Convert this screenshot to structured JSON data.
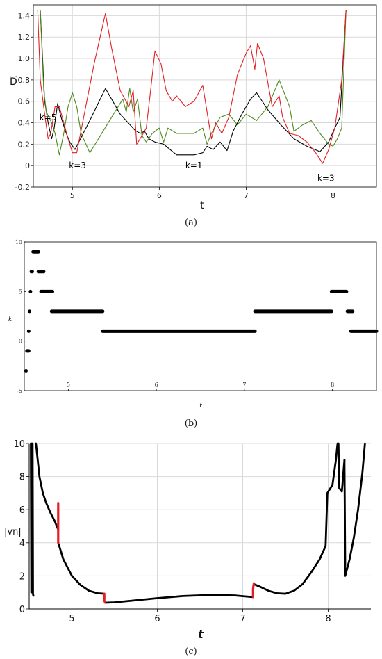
{
  "chart_data": [
    {
      "type": "line",
      "caption": "(a)",
      "xlabel": "t",
      "ylabel": "D̄",
      "xlim": [
        4.55,
        8.5
      ],
      "ylim": [
        -0.2,
        1.5
      ],
      "x_ticks": [
        5,
        6,
        7,
        8
      ],
      "y_ticks": [
        -0.2,
        0,
        0.2,
        0.4,
        0.6,
        0.8,
        1.0,
        1.2,
        1.4
      ],
      "y_tick_labels": [
        "-0.2",
        "0",
        "0.2",
        "0.4",
        "0.6",
        "0.8",
        "1.0",
        "1.2",
        "1.4"
      ],
      "grid": true,
      "series": [
        {
          "color": "#000000",
          "x": [
            4.63,
            4.68,
            4.72,
            4.76,
            4.79,
            4.83,
            4.87,
            4.92,
            4.97,
            5.03,
            5.2,
            5.38,
            5.55,
            5.72,
            5.78,
            5.83,
            5.88,
            5.95,
            6.05,
            6.2,
            6.3,
            6.4,
            6.5,
            6.55,
            6.62,
            6.7,
            6.78,
            6.85,
            6.95,
            7.05,
            7.12,
            7.25,
            7.4,
            7.55,
            7.7,
            7.85,
            7.95,
            8.02,
            8.08,
            8.15
          ],
          "y": [
            1.45,
            0.6,
            0.4,
            0.25,
            0.35,
            0.58,
            0.45,
            0.32,
            0.22,
            0.15,
            0.42,
            0.72,
            0.48,
            0.33,
            0.3,
            0.32,
            0.25,
            0.22,
            0.2,
            0.1,
            0.1,
            0.1,
            0.12,
            0.18,
            0.15,
            0.22,
            0.14,
            0.32,
            0.48,
            0.62,
            0.68,
            0.52,
            0.38,
            0.25,
            0.18,
            0.13,
            0.22,
            0.35,
            0.45,
            1.45
          ]
        },
        {
          "color": "#4d8a1e",
          "x": [
            4.63,
            4.67,
            4.7,
            4.73,
            4.76,
            4.8,
            4.85,
            4.9,
            4.95,
            5.0,
            5.05,
            5.1,
            5.2,
            5.3,
            5.45,
            5.58,
            5.62,
            5.66,
            5.7,
            5.75,
            5.8,
            5.85,
            5.92,
            6.0,
            6.05,
            6.1,
            6.2,
            6.3,
            6.4,
            6.5,
            6.55,
            6.6,
            6.7,
            6.8,
            6.9,
            7.0,
            7.12,
            7.25,
            7.38,
            7.5,
            7.55,
            7.65,
            7.75,
            7.85,
            7.9,
            7.95,
            8.0,
            8.05,
            8.1,
            8.15
          ],
          "y": [
            1.45,
            0.7,
            0.5,
            0.45,
            0.4,
            0.3,
            0.1,
            0.3,
            0.55,
            0.68,
            0.55,
            0.3,
            0.12,
            0.25,
            0.45,
            0.62,
            0.5,
            0.72,
            0.5,
            0.62,
            0.28,
            0.22,
            0.3,
            0.35,
            0.22,
            0.35,
            0.3,
            0.3,
            0.3,
            0.35,
            0.2,
            0.3,
            0.45,
            0.48,
            0.38,
            0.48,
            0.42,
            0.55,
            0.8,
            0.55,
            0.32,
            0.38,
            0.42,
            0.3,
            0.25,
            0.2,
            0.18,
            0.25,
            0.35,
            1.45
          ]
        },
        {
          "color": "#e31e24",
          "x": [
            4.6,
            4.63,
            4.68,
            4.72,
            4.75,
            4.8,
            4.85,
            4.9,
            4.95,
            5.0,
            5.05,
            5.25,
            5.38,
            5.45,
            5.55,
            5.65,
            5.7,
            5.74,
            5.78,
            5.85,
            5.9,
            5.95,
            6.02,
            6.08,
            6.15,
            6.2,
            6.25,
            6.3,
            6.4,
            6.5,
            6.6,
            6.65,
            6.72,
            6.8,
            6.9,
            7.0,
            7.05,
            7.1,
            7.13,
            7.2,
            7.3,
            7.38,
            7.42,
            7.5,
            7.6,
            7.7,
            7.8,
            7.88,
            7.95,
            8.02,
            8.1,
            8.15
          ],
          "y": [
            1.45,
            0.8,
            0.48,
            0.25,
            0.3,
            0.55,
            0.55,
            0.4,
            0.25,
            0.12,
            0.12,
            0.95,
            1.42,
            1.1,
            0.7,
            0.55,
            0.7,
            0.2,
            0.25,
            0.35,
            0.7,
            1.07,
            0.95,
            0.7,
            0.6,
            0.65,
            0.6,
            0.55,
            0.6,
            0.75,
            0.25,
            0.4,
            0.3,
            0.45,
            0.85,
            1.05,
            1.12,
            0.9,
            1.14,
            1.0,
            0.55,
            0.65,
            0.45,
            0.3,
            0.28,
            0.22,
            0.12,
            0.02,
            0.15,
            0.35,
            0.8,
            1.45
          ]
        }
      ],
      "annotations": [
        {
          "text": "k=5",
          "x": 4.62,
          "y": 0.45
        },
        {
          "text": "k=3",
          "x": 4.96,
          "y": 0.0
        },
        {
          "text": "k=1",
          "x": 6.3,
          "y": 0.0
        },
        {
          "text": "k=3",
          "x": 7.82,
          "y": -0.12
        }
      ]
    },
    {
      "type": "scatter",
      "caption": "(b)",
      "xlabel": "t",
      "ylabel": "k",
      "xlim": [
        4.5,
        8.5
      ],
      "ylim": [
        -5,
        10
      ],
      "x_ticks": [
        5,
        6,
        7,
        8
      ],
      "y_ticks": [
        -5,
        0,
        5,
        10
      ],
      "grid": false,
      "segments": [
        {
          "x0": 4.52,
          "x1": 4.52,
          "y": -3
        },
        {
          "x0": 4.53,
          "x1": 4.55,
          "y": -1
        },
        {
          "x0": 4.55,
          "x1": 4.55,
          "y": 1
        },
        {
          "x0": 4.56,
          "x1": 4.56,
          "y": 3
        },
        {
          "x0": 4.57,
          "x1": 4.57,
          "y": 5
        },
        {
          "x0": 4.58,
          "x1": 4.59,
          "y": 7
        },
        {
          "x0": 4.6,
          "x1": 4.66,
          "y": 9
        },
        {
          "x0": 4.66,
          "x1": 4.72,
          "y": 7
        },
        {
          "x0": 4.69,
          "x1": 4.82,
          "y": 5
        },
        {
          "x0": 4.81,
          "x1": 5.39,
          "y": 3
        },
        {
          "x0": 5.39,
          "x1": 7.12,
          "y": 1
        },
        {
          "x0": 7.12,
          "x1": 7.99,
          "y": 3
        },
        {
          "x0": 7.99,
          "x1": 8.16,
          "y": 5
        },
        {
          "x0": 8.17,
          "x1": 8.23,
          "y": 3
        },
        {
          "x0": 8.21,
          "x1": 8.5,
          "y": 1
        }
      ]
    },
    {
      "type": "line",
      "caption": "(c)",
      "xlabel": "t",
      "ylabel": "|vn|",
      "xlim": [
        4.5,
        8.5
      ],
      "ylim": [
        0,
        10
      ],
      "x_ticks": [
        5,
        6,
        7,
        8
      ],
      "y_ticks": [
        0,
        2,
        4,
        6,
        8,
        10
      ],
      "grid": true,
      "series": [
        {
          "color": "#000000",
          "x": [
            4.52,
            4.525,
            4.53,
            4.535,
            4.54,
            4.545,
            4.55
          ],
          "y": [
            10,
            1.0,
            10,
            1.2,
            10,
            0.9,
            0.8
          ]
        },
        {
          "color": "#000000",
          "x": [
            4.58,
            4.62,
            4.66,
            4.7,
            4.75,
            4.8,
            4.84
          ],
          "y": [
            10,
            8.0,
            7.0,
            6.4,
            5.8,
            5.3,
            4.8
          ]
        },
        {
          "color": "#000000",
          "x": [
            4.84,
            4.9,
            5.0,
            5.1,
            5.2,
            5.3,
            5.38
          ],
          "y": [
            4.0,
            3.0,
            2.0,
            1.45,
            1.1,
            0.95,
            0.92
          ]
        },
        {
          "color": "#000000",
          "x": [
            5.39,
            5.5,
            5.7,
            6.0,
            6.3,
            6.6,
            6.9,
            7.12
          ],
          "y": [
            0.38,
            0.4,
            0.5,
            0.65,
            0.78,
            0.84,
            0.82,
            0.72
          ]
        },
        {
          "color": "#000000",
          "x": [
            7.13,
            7.2,
            7.3,
            7.4,
            7.5,
            7.6,
            7.7,
            7.8,
            7.9,
            7.97,
            7.99,
            8.05,
            8.09,
            8.11
          ],
          "y": [
            1.5,
            1.35,
            1.1,
            0.95,
            0.92,
            1.1,
            1.5,
            2.2,
            3.0,
            3.8,
            7.0,
            7.5,
            9.0,
            10
          ]
        },
        {
          "color": "#000000",
          "x": [
            8.12,
            8.13,
            8.16,
            8.19
          ],
          "y": [
            10,
            7.3,
            7.1,
            9.0
          ]
        },
        {
          "color": "#000000",
          "x": [
            8.19,
            8.2,
            8.25,
            8.3,
            8.35,
            8.4,
            8.43
          ],
          "y": [
            9.0,
            2.0,
            3.0,
            4.3,
            6.0,
            8.2,
            10
          ]
        },
        {
          "color": "#e31e24",
          "x": [
            4.84,
            4.84
          ],
          "y": [
            4.0,
            6.4
          ]
        },
        {
          "color": "#e31e24",
          "x": [
            5.38,
            5.38,
            5.39
          ],
          "y": [
            0.92,
            0.5,
            0.38
          ]
        },
        {
          "color": "#e31e24",
          "x": [
            7.12,
            7.12,
            7.13
          ],
          "y": [
            0.72,
            1.2,
            1.55
          ]
        }
      ]
    }
  ]
}
